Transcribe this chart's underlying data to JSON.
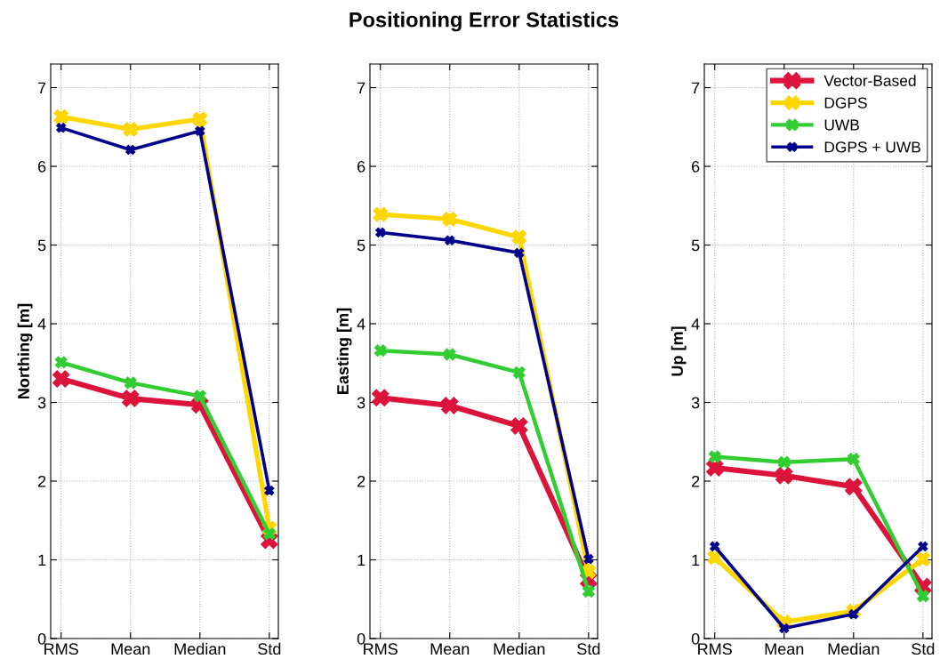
{
  "chart_data": [
    {
      "type": "line",
      "ylabel": "Northing [m]",
      "categories": [
        "RMS",
        "Mean",
        "Median",
        "Std"
      ],
      "ylim": [
        0,
        7.3
      ],
      "yticks": [
        0,
        1,
        2,
        3,
        4,
        5,
        6,
        7
      ],
      "grid": true,
      "marker": "cross",
      "line_style": "solid",
      "series": [
        {
          "color": "#dc143c",
          "values": [
            3.3,
            3.05,
            2.97,
            1.25
          ]
        },
        {
          "color": "#ffd700",
          "values": [
            6.63,
            6.47,
            6.6,
            1.4
          ]
        },
        {
          "color": "#32cd32",
          "values": [
            3.51,
            3.25,
            3.08,
            1.33
          ]
        },
        {
          "color": "#00008b",
          "values": [
            6.49,
            6.21,
            6.45,
            1.88
          ]
        }
      ]
    },
    {
      "type": "line",
      "title": "Positioning Error Statistics",
      "ylabel": "Easting [m]",
      "categories": [
        "RMS",
        "Mean",
        "Median",
        "Std"
      ],
      "ylim": [
        0,
        7.3
      ],
      "yticks": [
        0,
        1,
        2,
        3,
        4,
        5,
        6,
        7
      ],
      "grid": true,
      "marker": "cross",
      "line_style": "solid",
      "series": [
        {
          "color": "#dc143c",
          "values": [
            3.06,
            2.96,
            2.7,
            0.75
          ]
        },
        {
          "color": "#ffd700",
          "values": [
            5.39,
            5.33,
            5.1,
            0.85
          ]
        },
        {
          "color": "#32cd32",
          "values": [
            3.66,
            3.61,
            3.38,
            0.6
          ]
        },
        {
          "color": "#00008b",
          "values": [
            5.16,
            5.06,
            4.9,
            1.01
          ]
        }
      ]
    },
    {
      "type": "line",
      "ylabel": "Up [m]",
      "categories": [
        "RMS",
        "Mean",
        "Median",
        "Std"
      ],
      "ylim": [
        0,
        7.3
      ],
      "yticks": [
        0,
        1,
        2,
        3,
        4,
        5,
        6,
        7
      ],
      "grid": true,
      "marker": "cross",
      "line_style": "solid",
      "legend": "top right",
      "series": [
        {
          "name": "Vector-Based",
          "color": "#dc143c",
          "values": [
            2.17,
            2.07,
            1.93,
            0.66
          ]
        },
        {
          "name": "DGPS",
          "color": "#ffd700",
          "values": [
            1.03,
            0.21,
            0.35,
            1.01
          ]
        },
        {
          "name": "UWB",
          "color": "#32cd32",
          "values": [
            2.31,
            2.24,
            2.28,
            0.54
          ]
        },
        {
          "name": "DGPS + UWB",
          "color": "#00008b",
          "values": [
            1.17,
            0.13,
            0.31,
            1.17
          ]
        }
      ]
    }
  ]
}
